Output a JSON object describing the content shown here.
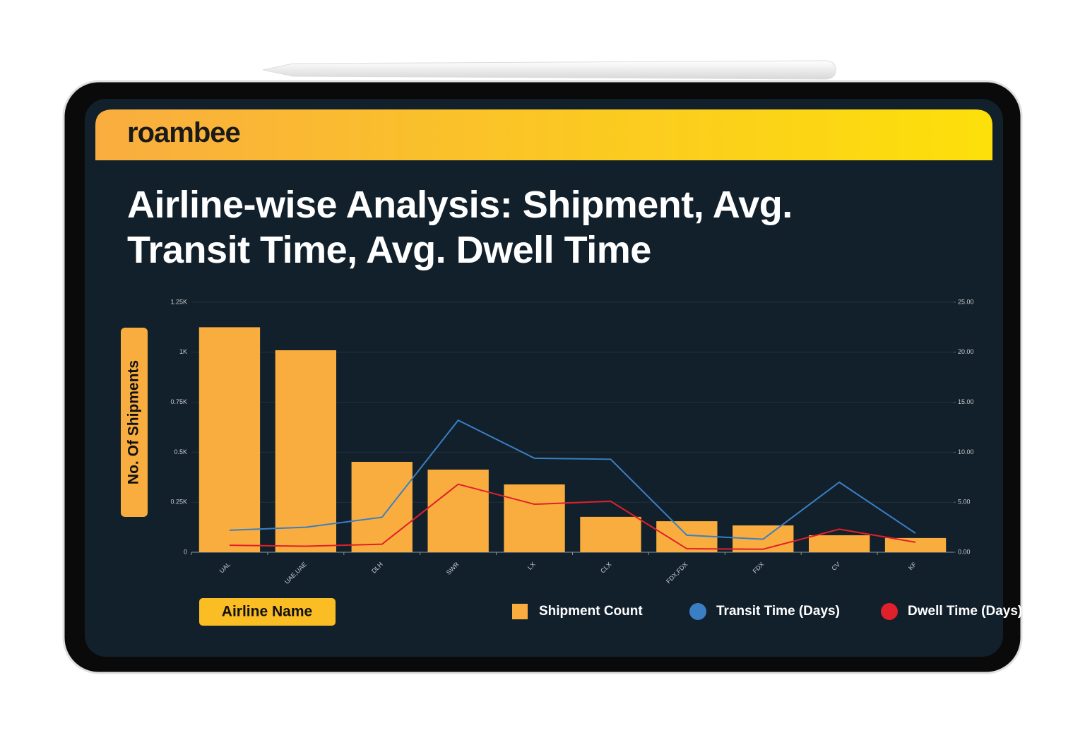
{
  "brand": "roambee",
  "chart_data": {
    "type": "combo",
    "title": "Airline-wise Analysis:  Shipment, Avg. Transit Time, Avg. Dwell Time",
    "x_label": "Airline Name",
    "y_label": "No. Of Shipments",
    "categories": [
      "UAL",
      "UAE,UAE",
      "DLH",
      "SWR",
      "LX",
      "CLX",
      "FDX,FDX",
      "FDX",
      "CV",
      "KF"
    ],
    "series": [
      {
        "name": "Shipment Count",
        "type": "bar",
        "color": "#f9ad3f",
        "values": [
          1125,
          1010,
          452,
          413,
          339,
          177,
          155,
          134,
          85,
          71
        ]
      },
      {
        "name": "Transit Time (Days)",
        "type": "line",
        "axis": "y2",
        "color": "#3a7fc4",
        "values": [
          2.2,
          2.5,
          3.5,
          13.2,
          9.4,
          9.3,
          1.7,
          1.3,
          7.0,
          1.9
        ]
      },
      {
        "name": "Dwell Time (Days)",
        "type": "line",
        "axis": "y2",
        "color": "#e0202a",
        "values": [
          0.7,
          0.6,
          0.8,
          6.8,
          4.8,
          5.1,
          0.35,
          0.3,
          2.3,
          1.0
        ]
      }
    ],
    "ylim": [
      0,
      1250
    ],
    "yticks": [
      0,
      {
        "value": 250,
        "label": "0.25K"
      },
      {
        "value": 500,
        "label": "0.5K"
      },
      {
        "value": 750,
        "label": "0.75K"
      },
      {
        "value": 1000,
        "label": "1K"
      },
      {
        "value": 1250,
        "label": "1.25K"
      }
    ],
    "y2lim": [
      0,
      25
    ],
    "y2ticks": [
      {
        "value": 0,
        "label": "0.00"
      },
      {
        "value": 5,
        "label": "5.00"
      },
      {
        "value": 10,
        "label": "10.00"
      },
      {
        "value": 15,
        "label": "15.00"
      },
      {
        "value": 20,
        "label": "20.00"
      },
      {
        "value": 25,
        "label": "25.00"
      }
    ],
    "grid": true
  }
}
